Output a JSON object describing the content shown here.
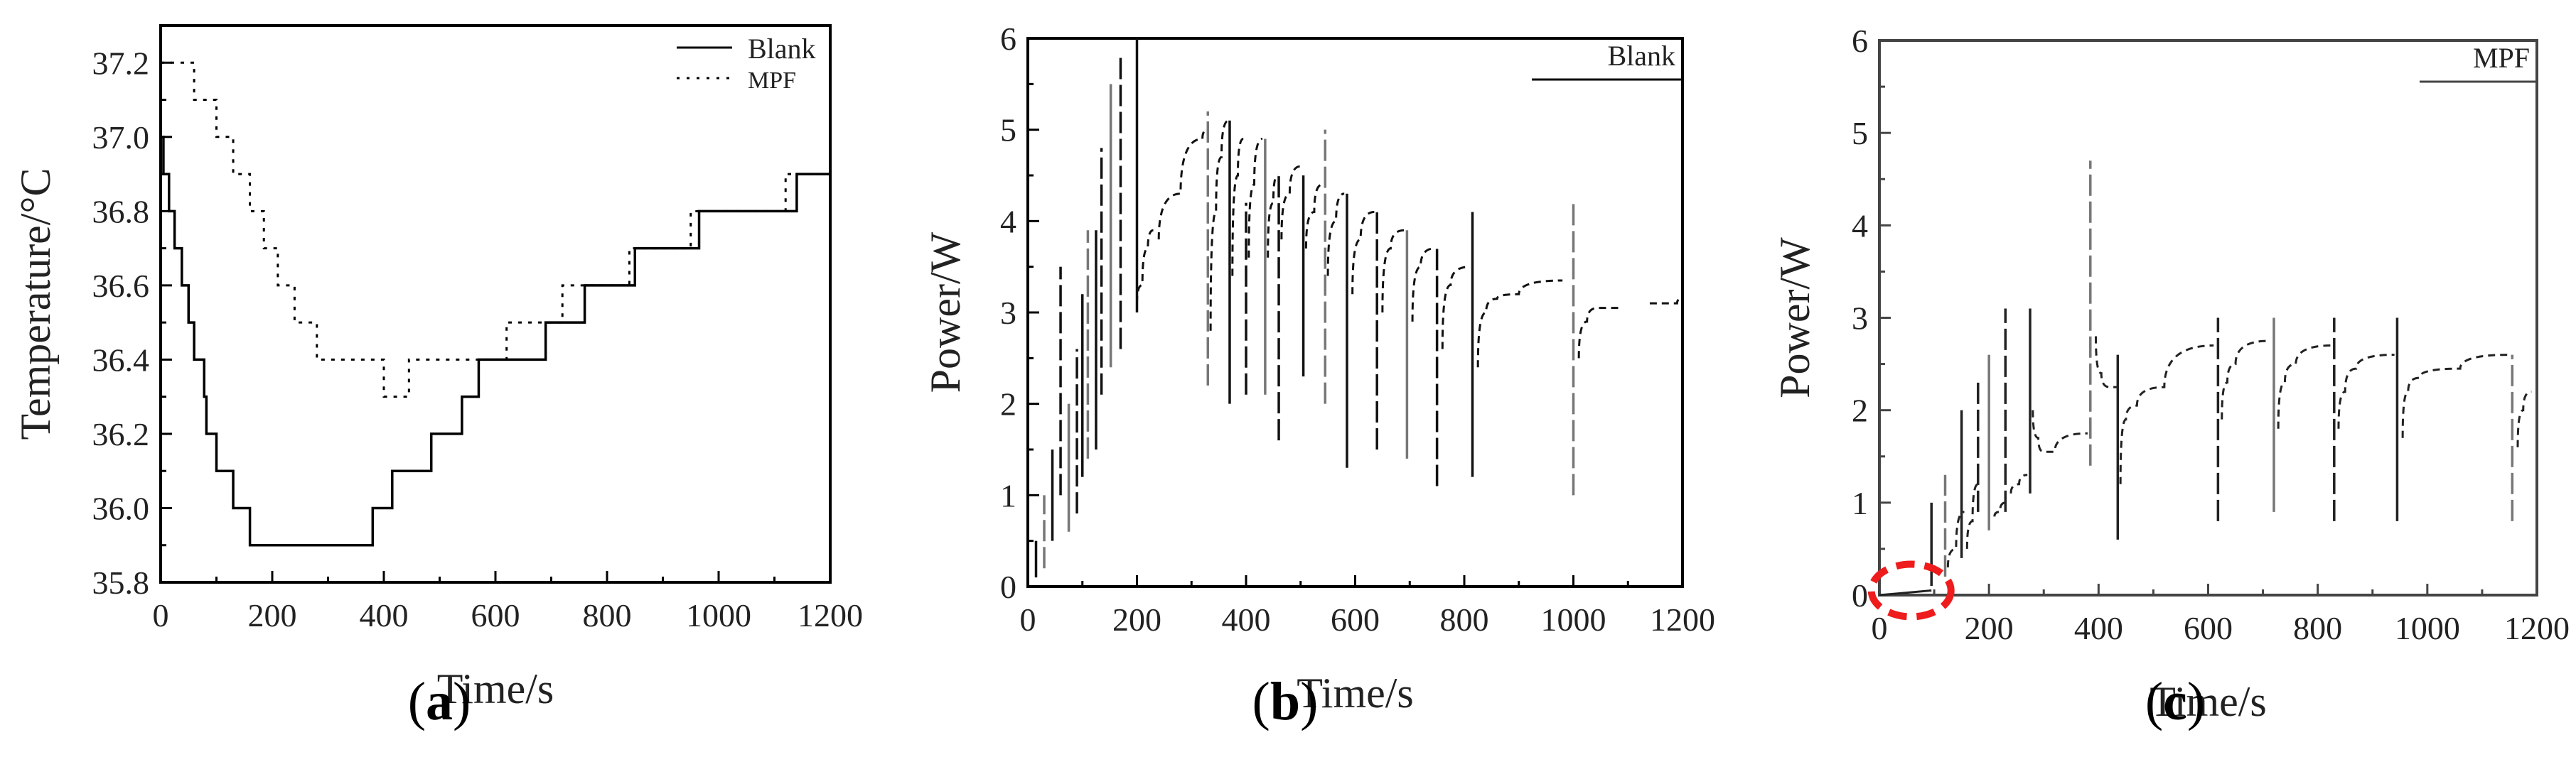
{
  "figure": {
    "panels": [
      {
        "id": "a",
        "caption_letter": "a"
      },
      {
        "id": "b",
        "caption_letter": "b"
      },
      {
        "id": "c",
        "caption_letter": "c"
      }
    ]
  },
  "chart_data": [
    {
      "panel": "a",
      "type": "line",
      "title": "",
      "xlabel": "Time/s",
      "ylabel": "Temperature/°C",
      "xlim": [
        0,
        1200
      ],
      "ylim": [
        35.8,
        37.3
      ],
      "xticks": [
        "0",
        "200",
        "400",
        "600",
        "800",
        "1000",
        "1200"
      ],
      "yticks": [
        "35.8",
        "36.0",
        "36.2",
        "36.4",
        "36.6",
        "36.8",
        "37.0",
        "37.2"
      ],
      "grid": false,
      "legend_position": "top-right",
      "step": true,
      "series": [
        {
          "name": "Blank",
          "style": "solid",
          "x": [
            0,
            5,
            15,
            25,
            38,
            50,
            60,
            78,
            82,
            100,
            130,
            160,
            370,
            380,
            415,
            485,
            540,
            570,
            690,
            760,
            850,
            965,
            1140,
            1200
          ],
          "y": [
            37.0,
            36.9,
            36.8,
            36.7,
            36.6,
            36.5,
            36.4,
            36.3,
            36.2,
            36.1,
            36.0,
            35.9,
            35.9,
            36.0,
            36.1,
            36.2,
            36.3,
            36.4,
            36.5,
            36.6,
            36.7,
            36.8,
            36.9,
            36.9
          ]
        },
        {
          "name": "MPF",
          "style": "dotted",
          "x": [
            0,
            60,
            100,
            130,
            160,
            185,
            210,
            240,
            280,
            400,
            445,
            620,
            720,
            840,
            950,
            1120,
            1200
          ],
          "y": [
            37.2,
            37.1,
            37.0,
            36.9,
            36.8,
            36.7,
            36.6,
            36.5,
            36.4,
            36.3,
            36.4,
            36.5,
            36.6,
            36.7,
            36.8,
            36.9,
            36.9
          ]
        }
      ]
    },
    {
      "panel": "b",
      "type": "line",
      "title": "",
      "xlabel": "Time/s",
      "ylabel": "Power/W",
      "xlim": [
        0,
        1200
      ],
      "ylim": [
        0,
        6
      ],
      "xticks": [
        "0",
        "200",
        "400",
        "600",
        "800",
        "1000",
        "1200"
      ],
      "yticks": [
        "0",
        "1",
        "2",
        "3",
        "4",
        "5",
        "6"
      ],
      "grid": false,
      "legend_position": "top-right",
      "series": [
        {
          "name": "Blank",
          "style": "solid",
          "spikes": [
            {
              "x": 15,
              "low": 0.1,
              "high": 0.5
            },
            {
              "x": 30,
              "low": 0.2,
              "high": 1.0
            },
            {
              "x": 45,
              "low": 0.5,
              "high": 1.5
            },
            {
              "x": 60,
              "low": 1.0,
              "high": 3.5
            },
            {
              "x": 75,
              "low": 0.6,
              "high": 2.0
            },
            {
              "x": 90,
              "low": 0.8,
              "high": 2.6
            },
            {
              "x": 100,
              "low": 1.2,
              "high": 3.2
            },
            {
              "x": 110,
              "low": 1.4,
              "high": 3.9
            },
            {
              "x": 125,
              "low": 1.5,
              "high": 3.9
            },
            {
              "x": 135,
              "low": 2.1,
              "high": 4.8
            },
            {
              "x": 152,
              "low": 2.4,
              "high": 5.5
            },
            {
              "x": 170,
              "low": 2.6,
              "high": 5.8
            },
            {
              "x": 200,
              "low": 3.0,
              "high": 6.0
            },
            {
              "x": 330,
              "low": 2.2,
              "high": 5.2
            },
            {
              "x": 370,
              "low": 2.0,
              "high": 5.1
            },
            {
              "x": 400,
              "low": 2.1,
              "high": 4.2
            },
            {
              "x": 435,
              "low": 2.1,
              "high": 4.9
            },
            {
              "x": 460,
              "low": 1.6,
              "high": 4.5
            },
            {
              "x": 505,
              "low": 2.3,
              "high": 4.5
            },
            {
              "x": 545,
              "low": 2.0,
              "high": 5.0
            },
            {
              "x": 585,
              "low": 1.3,
              "high": 4.3
            },
            {
              "x": 640,
              "low": 1.5,
              "high": 4.1
            },
            {
              "x": 695,
              "low": 1.4,
              "high": 3.9
            },
            {
              "x": 750,
              "low": 1.1,
              "high": 3.7
            },
            {
              "x": 815,
              "low": 1.2,
              "high": 4.1
            },
            {
              "x": 1000,
              "low": 1.0,
              "high": 4.2
            }
          ],
          "recovery_curves": [
            {
              "x": [
                200,
                210,
                220,
                230
              ],
              "y": [
                3.1,
                3.3,
                3.7,
                3.9
              ]
            },
            {
              "x": [
                240,
                280,
                320,
                330
              ],
              "y": [
                3.8,
                4.3,
                4.9,
                5.0
              ]
            },
            {
              "x": [
                335,
                345,
                355,
                368
              ],
              "y": [
                2.8,
                4.1,
                4.7,
                5.1
              ]
            },
            {
              "x": [
                375,
                385,
                395
              ],
              "y": [
                3.4,
                4.5,
                4.9
              ]
            },
            {
              "x": [
                405,
                415,
                430
              ],
              "y": [
                3.6,
                4.4,
                4.9
              ]
            },
            {
              "x": [
                440,
                450,
                458
              ],
              "y": [
                3.6,
                4.2,
                4.5
              ]
            },
            {
              "x": [
                465,
                480,
                500
              ],
              "y": [
                3.8,
                4.3,
                4.6
              ]
            },
            {
              "x": [
                510,
                525,
                540
              ],
              "y": [
                3.7,
                4.1,
                4.4
              ]
            },
            {
              "x": [
                550,
                565,
                580
              ],
              "y": [
                3.4,
                4.0,
                4.3
              ]
            },
            {
              "x": [
                595,
                610,
                635
              ],
              "y": [
                3.2,
                3.8,
                4.1
              ]
            },
            {
              "x": [
                650,
                665,
                690
              ],
              "y": [
                3.0,
                3.7,
                3.9
              ]
            },
            {
              "x": [
                705,
                720,
                745
              ],
              "y": [
                2.9,
                3.5,
                3.7
              ]
            },
            {
              "x": [
                760,
                775,
                810
              ],
              "y": [
                2.6,
                3.3,
                3.5
              ]
            },
            {
              "x": [
                825,
                840,
                860,
                900,
                980
              ],
              "y": [
                2.4,
                3.0,
                3.15,
                3.2,
                3.35
              ]
            },
            {
              "x": [
                1010,
                1025,
                1045,
                1090
              ],
              "y": [
                2.5,
                2.9,
                3.05,
                3.05
              ]
            },
            {
              "x": [
                1140,
                1190,
                1200
              ],
              "y": [
                3.1,
                3.1,
                3.15
              ]
            }
          ]
        }
      ]
    },
    {
      "panel": "c",
      "type": "line",
      "title": "",
      "xlabel": "Time/s",
      "ylabel": "Power/W",
      "xlim": [
        0,
        1200
      ],
      "ylim": [
        0,
        6
      ],
      "xticks": [
        "0",
        "200",
        "400",
        "600",
        "800",
        "1000",
        "1200"
      ],
      "yticks": [
        "0",
        "1",
        "2",
        "3",
        "4",
        "5",
        "6"
      ],
      "grid": false,
      "legend_position": "top-right",
      "annotation": "red dashed ellipse around t=0–150 s near 0 W",
      "series": [
        {
          "name": "MPF",
          "style": "solid",
          "baseline": {
            "x": [
              0,
              95
            ],
            "y": [
              0.0,
              0.05
            ]
          },
          "spikes": [
            {
              "x": 95,
              "low": 0.1,
              "high": 1.0
            },
            {
              "x": 120,
              "low": 0.2,
              "high": 1.3
            },
            {
              "x": 150,
              "low": 0.4,
              "high": 2.0
            },
            {
              "x": 180,
              "low": 0.9,
              "high": 2.3
            },
            {
              "x": 200,
              "low": 0.7,
              "high": 2.6
            },
            {
              "x": 230,
              "low": 0.9,
              "high": 3.1
            },
            {
              "x": 275,
              "low": 1.1,
              "high": 3.1
            },
            {
              "x": 385,
              "low": 1.4,
              "high": 4.7
            },
            {
              "x": 435,
              "low": 0.6,
              "high": 2.6
            },
            {
              "x": 618,
              "low": 0.8,
              "high": 3.0
            },
            {
              "x": 720,
              "low": 0.9,
              "high": 3.0
            },
            {
              "x": 830,
              "low": 0.8,
              "high": 3.0
            },
            {
              "x": 945,
              "low": 0.8,
              "high": 3.0
            },
            {
              "x": 1155,
              "low": 0.8,
              "high": 2.6
            }
          ],
          "recovery_curves": [
            {
              "x": [
                125,
                140,
                155
              ],
              "y": [
                0.3,
                0.5,
                0.9
              ]
            },
            {
              "x": [
                160,
                170,
                180
              ],
              "y": [
                0.5,
                0.8,
                1.2
              ]
            },
            {
              "x": [
                210,
                220,
                230
              ],
              "y": [
                0.85,
                0.9,
                1.0
              ]
            },
            {
              "x": [
                240,
                255,
                270
              ],
              "y": [
                1.1,
                1.2,
                1.3
              ]
            },
            {
              "x": [
                280,
                290,
                300,
                320,
                380
              ],
              "y": [
                2.0,
                1.7,
                1.55,
                1.55,
                1.75
              ]
            },
            {
              "x": [
                395,
                405,
                420,
                433
              ],
              "y": [
                2.8,
                2.4,
                2.25,
                2.25
              ]
            },
            {
              "x": [
                440,
                450,
                470,
                520,
                610
              ],
              "y": [
                1.2,
                1.9,
                2.05,
                2.25,
                2.7
              ]
            },
            {
              "x": [
                625,
                635,
                650,
                710
              ],
              "y": [
                1.9,
                2.3,
                2.5,
                2.75
              ]
            },
            {
              "x": [
                728,
                740,
                760,
                825
              ],
              "y": [
                1.8,
                2.3,
                2.5,
                2.7
              ]
            },
            {
              "x": [
                838,
                850,
                870,
                940
              ],
              "y": [
                1.8,
                2.2,
                2.45,
                2.6
              ]
            },
            {
              "x": [
                955,
                965,
                985,
                1060,
                1150
              ],
              "y": [
                1.7,
                2.2,
                2.35,
                2.45,
                2.6
              ]
            },
            {
              "x": [
                1165,
                1175,
                1190
              ],
              "y": [
                1.6,
                2.0,
                2.2
              ]
            }
          ]
        }
      ]
    }
  ]
}
